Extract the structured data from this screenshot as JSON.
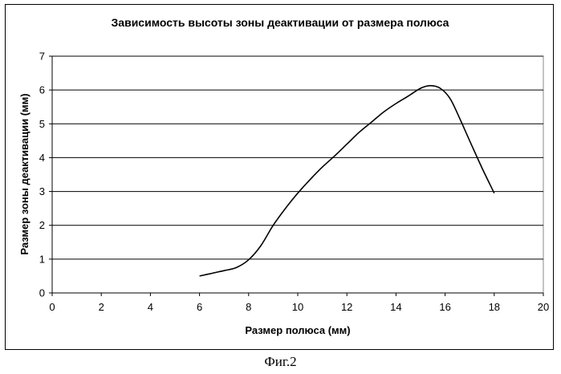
{
  "chart_data": {
    "type": "line",
    "title": "Зависимость высоты зоны деактивации от размера полюса",
    "xlabel": "Размер полюса (мм)",
    "ylabel": "Размер зоны деактивации  (мм)",
    "xlim": [
      0,
      20
    ],
    "ylim": [
      0,
      7
    ],
    "xticks": [
      0,
      2,
      4,
      6,
      8,
      10,
      12,
      14,
      16,
      18,
      20
    ],
    "yticks": [
      0,
      1,
      2,
      3,
      4,
      5,
      6,
      7
    ],
    "grid": "horizontal",
    "legend": "none",
    "series": [
      {
        "color": "#000000",
        "x": [
          6,
          6.5,
          7,
          7.5,
          8,
          8.5,
          9,
          9.5,
          10,
          10.5,
          11,
          11.5,
          12,
          12.5,
          13,
          13.5,
          14,
          14.5,
          15,
          15.4,
          15.8,
          16.2,
          16.6,
          17,
          17.5,
          18
        ],
        "y": [
          0.5,
          0.58,
          0.66,
          0.75,
          0.98,
          1.4,
          2.0,
          2.5,
          2.95,
          3.35,
          3.72,
          4.05,
          4.4,
          4.75,
          5.05,
          5.35,
          5.6,
          5.82,
          6.05,
          6.13,
          6.05,
          5.75,
          5.15,
          4.5,
          3.7,
          2.95
        ]
      }
    ]
  },
  "caption": "Фиг.2"
}
